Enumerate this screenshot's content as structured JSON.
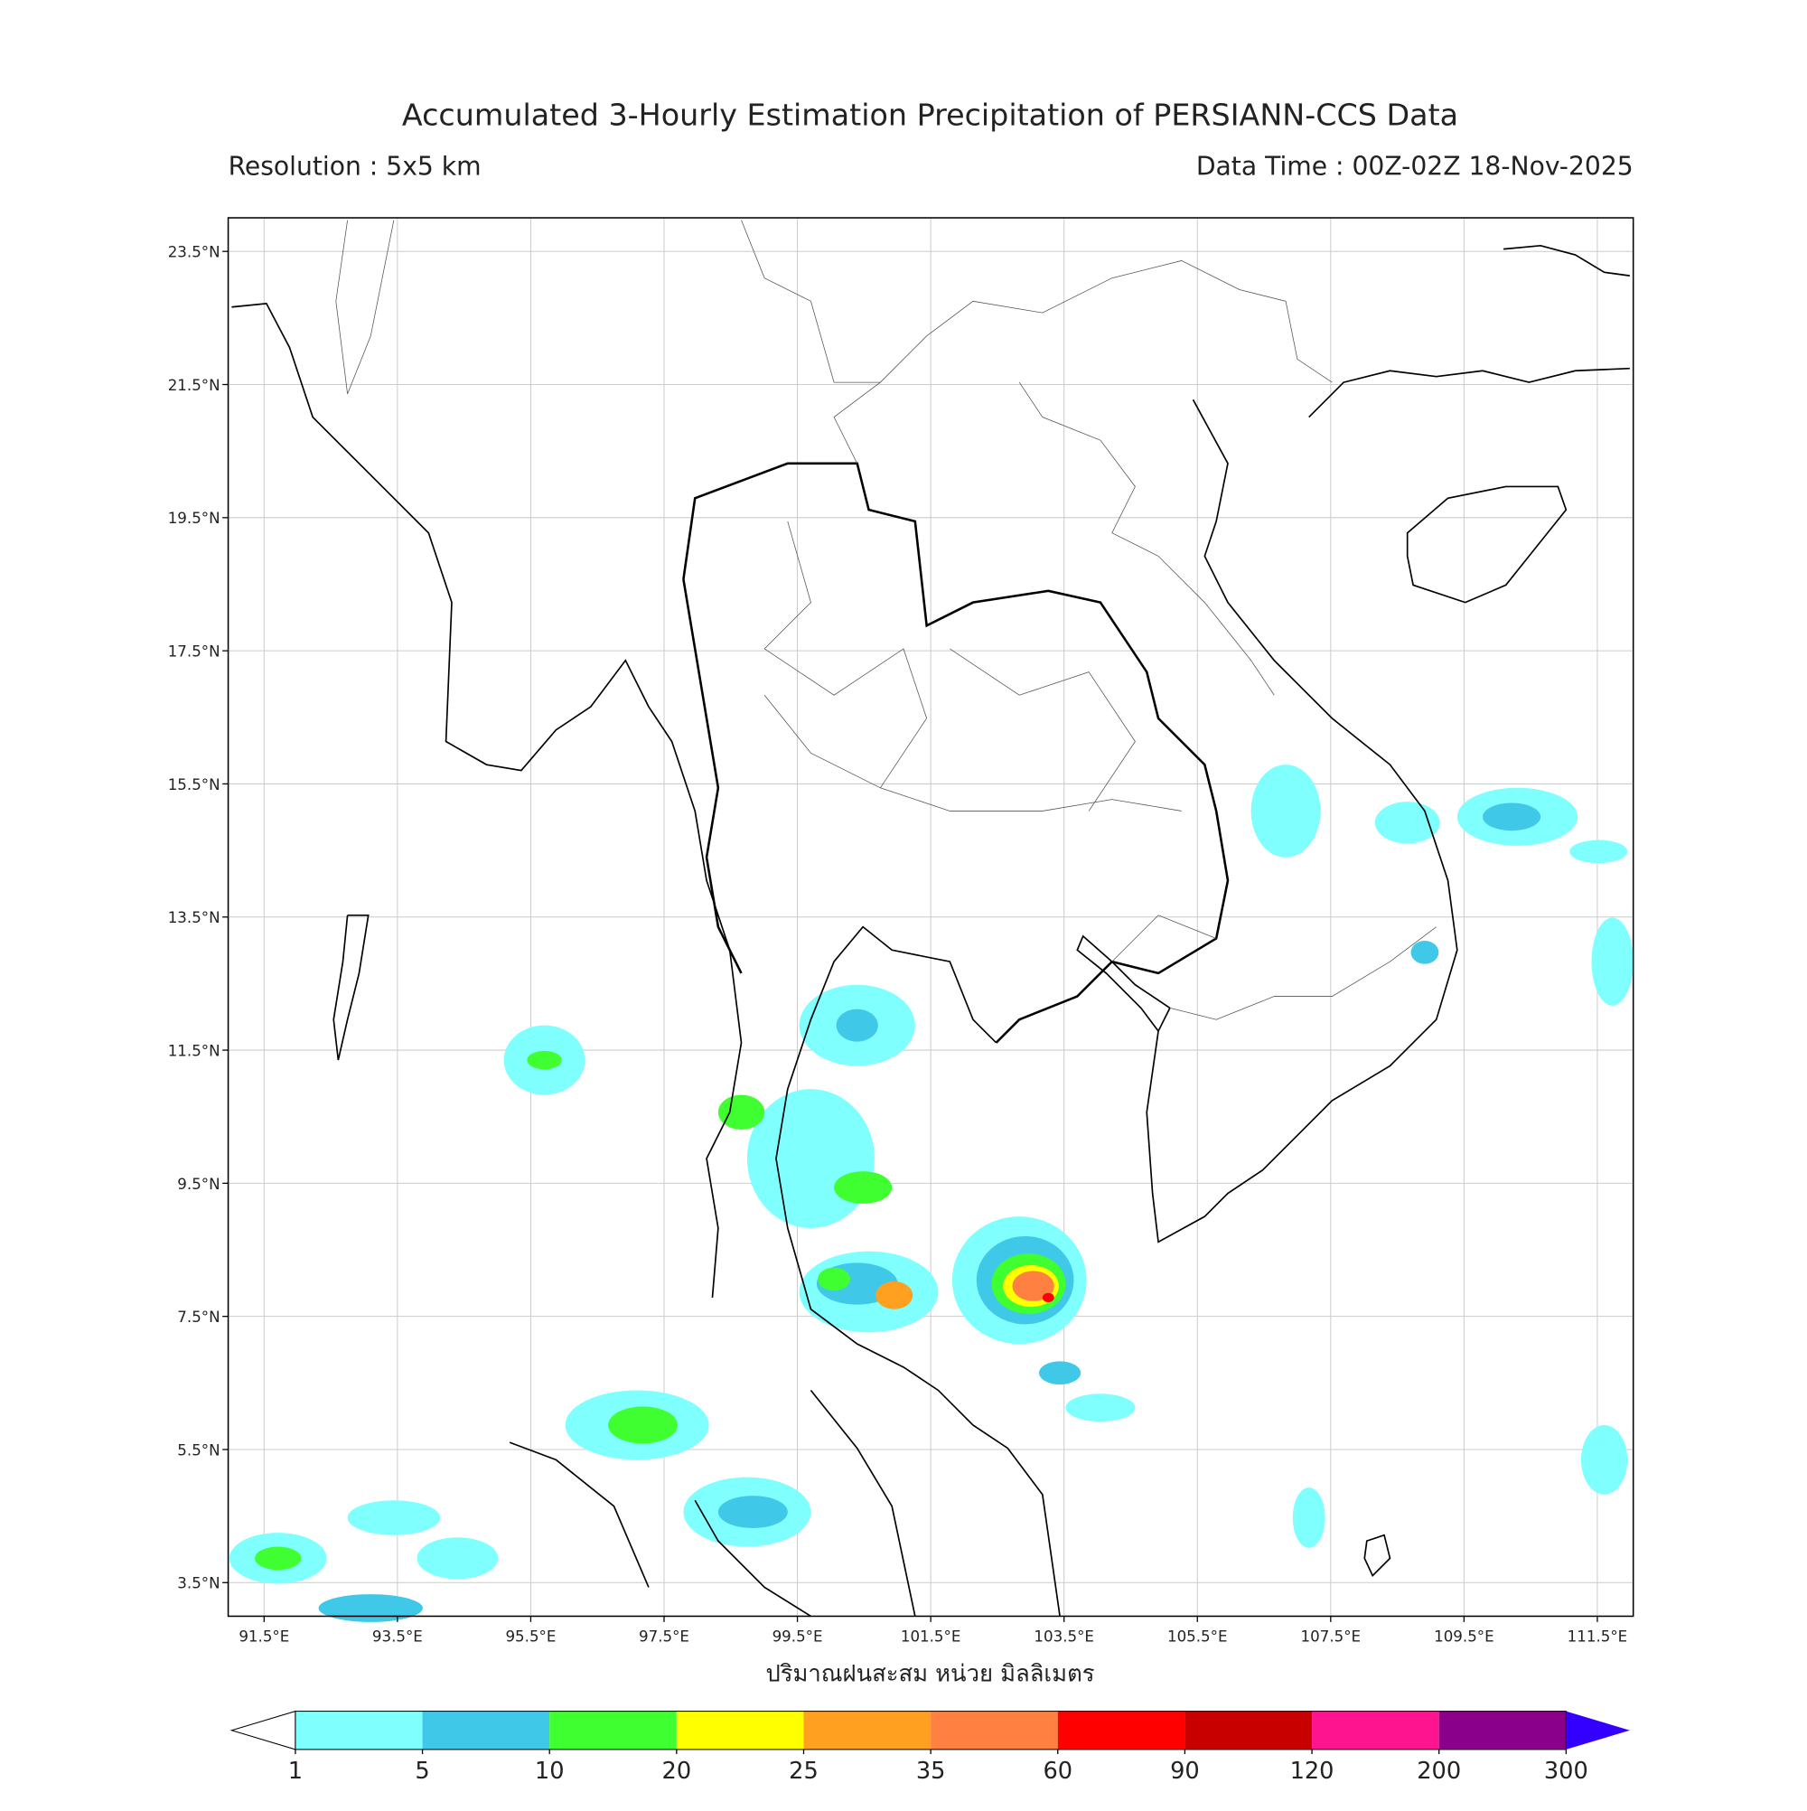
{
  "title": "Accumulated 3-Hourly Estimation Precipitation of PERSIANN-CCS Data",
  "resolution": "Resolution : 5x5 km",
  "data_time": "Data Time : 00Z-02Z 18-Nov-2025",
  "map": {
    "lon_ticks": [
      {
        "value": 91.5,
        "label": "91.5°E"
      },
      {
        "value": 93.5,
        "label": "93.5°E"
      },
      {
        "value": 95.5,
        "label": "95.5°E"
      },
      {
        "value": 97.5,
        "label": "97.5°E"
      },
      {
        "value": 99.5,
        "label": "99.5°E"
      },
      {
        "value": 101.5,
        "label": "101.5°E"
      },
      {
        "value": 103.5,
        "label": "103.5°E"
      },
      {
        "value": 105.5,
        "label": "105.5°E"
      },
      {
        "value": 107.5,
        "label": "107.5°E"
      },
      {
        "value": 109.5,
        "label": "109.5°E"
      },
      {
        "value": 111.5,
        "label": "111.5°E"
      }
    ],
    "lat_ticks": [
      {
        "value": 23.5,
        "label": "23.5°N"
      },
      {
        "value": 21.5,
        "label": "21.5°N"
      },
      {
        "value": 19.5,
        "label": "19.5°N"
      },
      {
        "value": 17.5,
        "label": "17.5°N"
      },
      {
        "value": 15.5,
        "label": "15.5°N"
      },
      {
        "value": 13.5,
        "label": "13.5°N"
      },
      {
        "value": 11.5,
        "label": "11.5°N"
      },
      {
        "value": 9.5,
        "label": "9.5°N"
      },
      {
        "value": 7.5,
        "label": "7.5°N"
      },
      {
        "value": 5.5,
        "label": "5.5°N"
      },
      {
        "value": 3.5,
        "label": "3.5°N"
      }
    ],
    "xlabel": "ปริมาณฝนสะสม หน่วย มิลลิเมตร"
  },
  "legend": {
    "levels": [
      1,
      5,
      10,
      20,
      25,
      35,
      60,
      90,
      120,
      200,
      300
    ],
    "colors": [
      "#80ffff",
      "#40c8e8",
      "#40ff30",
      "#ffff00",
      "#ffa020",
      "#ff8040",
      "#ff0000",
      "#c80000",
      "#ff1490",
      "#8b008b"
    ],
    "under_color": "#ffffff",
    "over_color": "#3300ff"
  }
}
